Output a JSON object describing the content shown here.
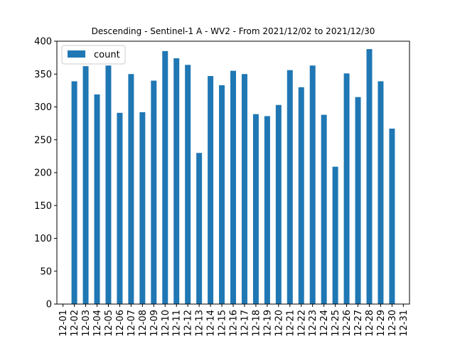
{
  "chart_data": {
    "type": "bar",
    "title": "Descending - Sentinel-1 A - WV2 - From 2021/12/02 to 2021/12/30",
    "xlabel": "",
    "ylabel": "",
    "categories": [
      "12-01",
      "12-02",
      "12-03",
      "12-04",
      "12-05",
      "12-06",
      "12-07",
      "12-08",
      "12-09",
      "12-10",
      "12-11",
      "12-12",
      "12-13",
      "12-14",
      "12-15",
      "12-16",
      "12-17",
      "12-18",
      "12-19",
      "12-20",
      "12-21",
      "12-22",
      "12-23",
      "12-24",
      "12-25",
      "12-26",
      "12-27",
      "12-28",
      "12-29",
      "12-30",
      "12-31"
    ],
    "series": [
      {
        "name": "count",
        "color": "#1f77b4",
        "values": [
          null,
          339,
          362,
          319,
          363,
          291,
          350,
          292,
          340,
          385,
          374,
          364,
          230,
          347,
          333,
          355,
          350,
          289,
          286,
          303,
          356,
          330,
          363,
          288,
          209,
          351,
          315,
          388,
          339,
          267,
          null
        ]
      }
    ],
    "yticks": [
      "0",
      "50",
      "100",
      "150",
      "200",
      "250",
      "300",
      "350",
      "400"
    ],
    "ylim": [
      0,
      400
    ],
    "grid": false,
    "legend": {
      "position": "top-left",
      "entries": [
        "count"
      ]
    }
  }
}
